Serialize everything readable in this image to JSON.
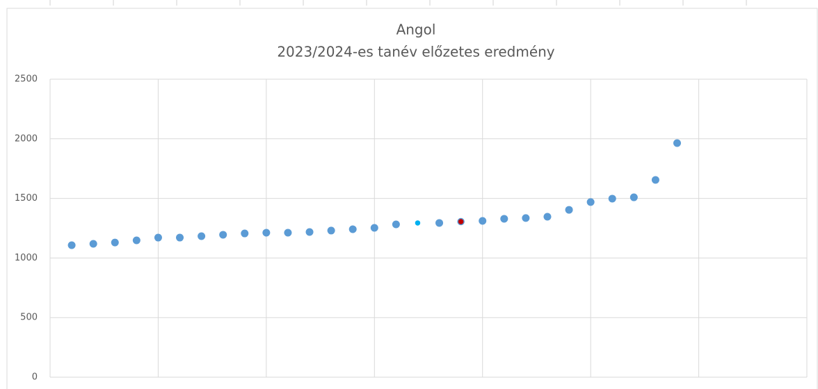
{
  "chart_data": {
    "type": "scatter",
    "title": "Angol",
    "subtitle": "2023/2024-es tanév előzetes eredmény",
    "x": [
      1,
      2,
      3,
      4,
      5,
      6,
      7,
      8,
      9,
      10,
      11,
      12,
      13,
      14,
      15,
      16,
      17,
      18,
      19,
      20,
      21,
      22,
      23,
      24,
      25,
      26,
      27,
      28,
      29
    ],
    "series": [
      {
        "color": "#5b9bd5",
        "values": [
          1107,
          1119,
          1130,
          1148,
          1171,
          1171,
          1183,
          1195,
          1206,
          1212,
          1212,
          1218,
          1230,
          1241,
          1253,
          1282,
          1294,
          1294,
          1305,
          1311,
          1329,
          1335,
          1346,
          1404,
          1469,
          1498,
          1509,
          1655,
          1964
        ],
        "point_colors": [
          "#5b9bd5",
          "#5b9bd5",
          "#5b9bd5",
          "#5b9bd5",
          "#5b9bd5",
          "#5b9bd5",
          "#5b9bd5",
          "#5b9bd5",
          "#5b9bd5",
          "#5b9bd5",
          "#5b9bd5",
          "#5b9bd5",
          "#5b9bd5",
          "#5b9bd5",
          "#5b9bd5",
          "#5b9bd5",
          "#00b0f0",
          "#5b9bd5",
          "#c00000",
          "#5b9bd5",
          "#5b9bd5",
          "#5b9bd5",
          "#5b9bd5",
          "#5b9bd5",
          "#5b9bd5",
          "#5b9bd5",
          "#5b9bd5",
          "#5b9bd5",
          "#5b9bd5"
        ]
      }
    ],
    "xlim": [
      0,
      35
    ],
    "xticks": [
      0,
      5,
      10,
      15,
      20,
      25,
      30,
      35
    ],
    "x_tick_labels": false,
    "ylim": [
      0,
      2500
    ],
    "yticks": [
      0,
      500,
      1000,
      1500,
      2000,
      2500
    ],
    "grid": true
  }
}
